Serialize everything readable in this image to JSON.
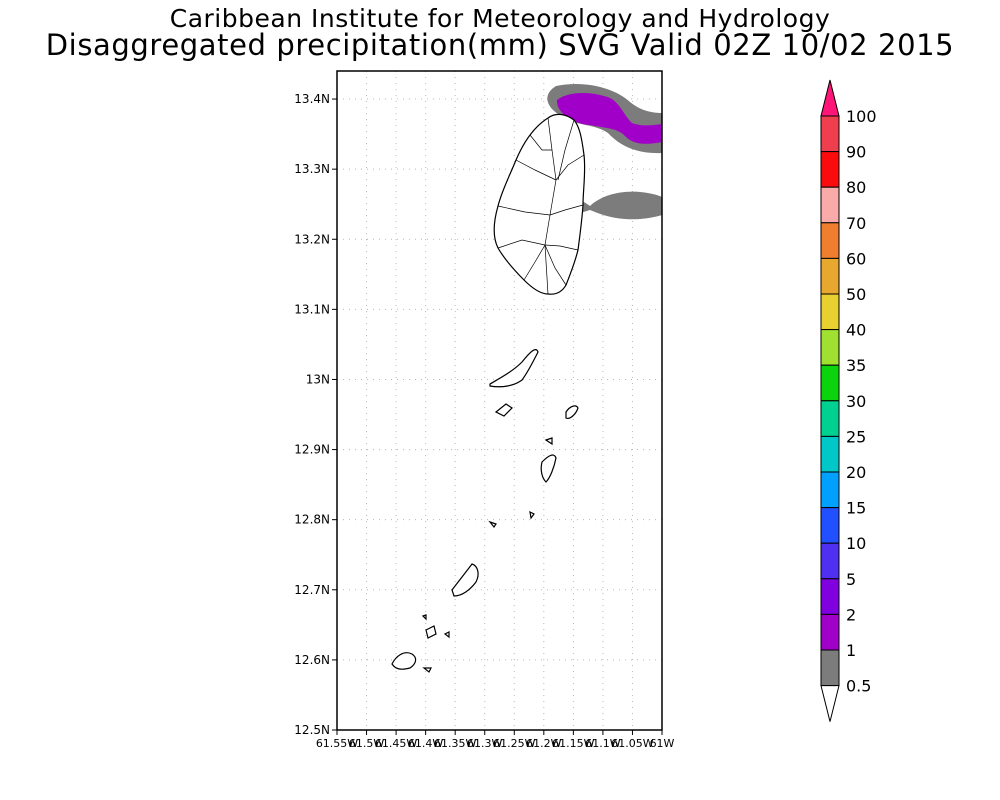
{
  "header": {
    "institute": "Caribbean Institute for Meteorology and Hydrology",
    "product": "Disaggregated precipitation(mm) SVG Valid 02Z 10/02 2015"
  },
  "map": {
    "lat_labels": [
      "13.4N",
      "13.3N",
      "13.2N",
      "13.1N",
      "13N",
      "12.9N",
      "12.8N",
      "12.7N",
      "12.6N",
      "12.5N"
    ],
    "lon_labels": [
      "61.55W",
      "61.5W",
      "61.45W",
      "61.4W",
      "61.35W",
      "61.3W",
      "61.25W",
      "61.2W",
      "61.15W",
      "61.1W",
      "61.05W",
      "61W"
    ],
    "lat_range": [
      12.5,
      13.44
    ],
    "lon_range": [
      -61.55,
      -61.0
    ],
    "grid": true
  },
  "colorbar": {
    "levels": [
      "100",
      "90",
      "80",
      "70",
      "60",
      "50",
      "40",
      "35",
      "30",
      "25",
      "20",
      "15",
      "10",
      "5",
      "2",
      "1",
      "0.5"
    ],
    "colors": [
      "#ef3f4f",
      "#fb0c0c",
      "#fbaaaa",
      "#ef7f2f",
      "#e8a830",
      "#e8d030",
      "#a0e030",
      "#0cd40c",
      "#00d090",
      "#00c8c8",
      "#00a0ff",
      "#2050ff",
      "#5030f0",
      "#8000e0",
      "#a000c8",
      "#7c7c7c"
    ],
    "top_arrow_color": "#ff1478"
  }
}
